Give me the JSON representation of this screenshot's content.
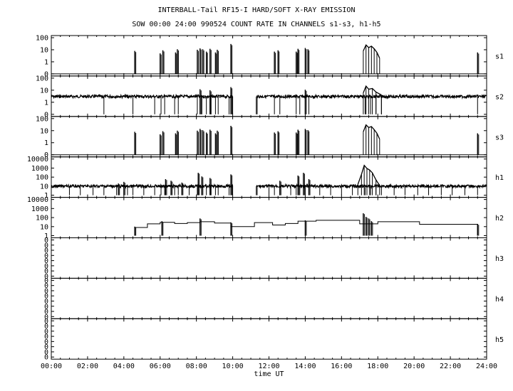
{
  "header": {
    "title": "INTERBALL-Tail RF15-I HARD/SOFT X-RAY EMISSION",
    "subtitle": "SOW 00:00 24:00 990524  COUNT RATE IN CHANNELS s1-s3, h1-h5"
  },
  "chart_data": {
    "type": "line",
    "xlabel": "time UT",
    "xlim": [
      0,
      24
    ],
    "x_ticks": [
      "00:00",
      "02:00",
      "04:00",
      "06:00",
      "08:00",
      "10:00",
      "12:00",
      "14:00",
      "16:00",
      "18:00",
      "20:00",
      "22:00",
      "24:00"
    ],
    "y_scale": "log",
    "grid": false,
    "panels": [
      {
        "name": "s1",
        "y_ticks": [
          "100",
          "10",
          "1",
          "0"
        ],
        "baseline": 0,
        "spikes": [
          [
            4.6,
            8
          ],
          [
            6.0,
            5
          ],
          [
            6.15,
            9
          ],
          [
            6.85,
            6
          ],
          [
            6.95,
            11
          ],
          [
            8.05,
            10
          ],
          [
            8.2,
            13
          ],
          [
            8.35,
            11
          ],
          [
            8.55,
            7
          ],
          [
            8.75,
            12
          ],
          [
            9.05,
            6
          ],
          [
            9.15,
            10
          ],
          [
            9.9,
            30
          ],
          [
            12.3,
            7
          ],
          [
            12.5,
            9
          ],
          [
            13.5,
            7
          ],
          [
            13.6,
            12
          ],
          [
            14.0,
            14
          ],
          [
            14.15,
            11
          ],
          [
            23.5,
            6
          ]
        ],
        "events": [
          {
            "x": [
              17.2,
              17.35,
              17.5,
              17.65,
              17.8,
              17.95,
              18.1
            ],
            "y": [
              8,
              25,
              15,
              20,
              12,
              6,
              2
            ]
          }
        ]
      },
      {
        "name": "s2",
        "y_ticks": [
          "100",
          "10",
          "1",
          "0"
        ],
        "baseline": 3,
        "gaps": [
          [
            10.0,
            11.3
          ]
        ],
        "dips": [
          2.9,
          4.5,
          5.7,
          6.05,
          6.25,
          6.8,
          7.0,
          8.05,
          8.3,
          8.55,
          8.8,
          9.05,
          9.2,
          9.8,
          11.35,
          12.3,
          12.6,
          13.5,
          13.7,
          14.0,
          14.2,
          17.3,
          17.6,
          17.9,
          18.2,
          23.5
        ],
        "spikes": [
          [
            8.2,
            12
          ],
          [
            8.75,
            10
          ],
          [
            9.9,
            18
          ],
          [
            14.0,
            11
          ]
        ],
        "events": [
          {
            "x": [
              17.2,
              17.35,
              17.5,
              17.7,
              17.9,
              18.2
            ],
            "y": [
              6,
              22,
              12,
              14,
              7,
              4
            ]
          }
        ]
      },
      {
        "name": "s3",
        "y_ticks": [
          "100",
          "10",
          "1",
          "0"
        ],
        "baseline": 0,
        "spikes": [
          [
            4.6,
            8
          ],
          [
            6.0,
            5
          ],
          [
            6.15,
            9
          ],
          [
            6.85,
            6
          ],
          [
            6.95,
            10
          ],
          [
            8.05,
            10
          ],
          [
            8.2,
            14
          ],
          [
            8.35,
            11
          ],
          [
            8.55,
            7
          ],
          [
            8.75,
            12
          ],
          [
            9.05,
            6
          ],
          [
            9.15,
            10
          ],
          [
            9.9,
            25
          ],
          [
            12.3,
            7
          ],
          [
            12.5,
            9
          ],
          [
            13.5,
            7
          ],
          [
            13.6,
            12
          ],
          [
            14.0,
            14
          ],
          [
            14.15,
            11
          ],
          [
            23.5,
            6
          ]
        ],
        "events": [
          {
            "x": [
              17.2,
              17.35,
              17.5,
              17.65,
              17.8,
              17.95,
              18.1
            ],
            "y": [
              8,
              30,
              18,
              22,
              12,
              6,
              2
            ]
          }
        ]
      },
      {
        "name": "h1",
        "y_ticks": [
          "10000",
          "1000",
          "100",
          "10",
          "1"
        ],
        "baseline": 10,
        "gaps": [
          [
            10.0,
            11.3
          ]
        ],
        "dips": [
          1.0,
          1.6,
          2.3,
          2.9,
          3.6,
          4.2,
          4.5,
          5.1,
          5.7,
          6.05,
          6.25,
          6.8,
          7.0,
          7.6,
          8.05,
          8.3,
          8.55,
          8.8,
          9.05,
          9.2,
          9.8,
          11.35,
          12.0,
          12.3,
          12.6,
          13.2,
          13.5,
          13.7,
          14.0,
          14.2,
          14.8,
          15.4,
          16.0,
          16.6,
          17.3,
          17.6,
          17.9,
          18.2,
          18.9,
          19.5,
          20.2,
          20.8,
          21.5,
          22.1,
          22.8,
          23.5
        ],
        "spikes": [
          [
            3.7,
            20
          ],
          [
            4.0,
            30
          ],
          [
            6.3,
            60
          ],
          [
            6.6,
            40
          ],
          [
            7.2,
            25
          ],
          [
            8.1,
            300
          ],
          [
            8.3,
            120
          ],
          [
            8.75,
            80
          ],
          [
            9.9,
            200
          ],
          [
            12.6,
            40
          ],
          [
            13.6,
            150
          ],
          [
            13.9,
            300
          ],
          [
            14.2,
            60
          ]
        ],
        "events": [
          {
            "x": [
              16.9,
              17.1,
              17.25,
              17.4,
              17.55,
              17.7,
              17.9,
              18.1
            ],
            "y": [
              15,
              200,
              2000,
              900,
              600,
              300,
              50,
              12
            ]
          }
        ]
      },
      {
        "name": "h2",
        "y_ticks": [
          "10000",
          "1000",
          "100",
          "10",
          "1"
        ],
        "baseline": 0,
        "steps": [
          [
            4.6,
            5.3,
            8
          ],
          [
            5.3,
            6.0,
            20
          ],
          [
            6.0,
            6.8,
            30
          ],
          [
            6.8,
            7.5,
            22
          ],
          [
            7.5,
            8.2,
            28
          ],
          [
            8.2,
            9.0,
            35
          ],
          [
            9.0,
            9.9,
            25
          ],
          [
            9.9,
            11.2,
            10
          ],
          [
            11.2,
            12.2,
            28
          ],
          [
            12.2,
            12.9,
            15
          ],
          [
            12.9,
            13.6,
            22
          ],
          [
            13.6,
            14.6,
            40
          ],
          [
            14.6,
            17.0,
            50
          ],
          [
            17.0,
            18.0,
            20
          ],
          [
            18.0,
            20.3,
            35
          ],
          [
            20.3,
            23.5,
            18
          ]
        ],
        "spikes": [
          [
            4.6,
            10
          ],
          [
            6.1,
            40
          ],
          [
            8.2,
            80
          ],
          [
            9.9,
            30
          ],
          [
            14.0,
            50
          ],
          [
            17.2,
            300
          ],
          [
            17.35,
            120
          ],
          [
            17.5,
            80
          ],
          [
            17.65,
            40
          ],
          [
            23.5,
            20
          ]
        ]
      },
      {
        "name": "h3",
        "y_ticks": [
          "0",
          "0",
          "0",
          "0",
          "0",
          "0",
          "0",
          "0"
        ],
        "baseline": 0
      },
      {
        "name": "h4",
        "y_ticks": [
          "0",
          "0",
          "0",
          "0",
          "0",
          "0",
          "0",
          "0"
        ],
        "baseline": 0
      },
      {
        "name": "h5",
        "y_ticks": [
          "0",
          "0",
          "0",
          "0",
          "0",
          "0",
          "0",
          "0"
        ],
        "baseline": 0
      }
    ]
  }
}
